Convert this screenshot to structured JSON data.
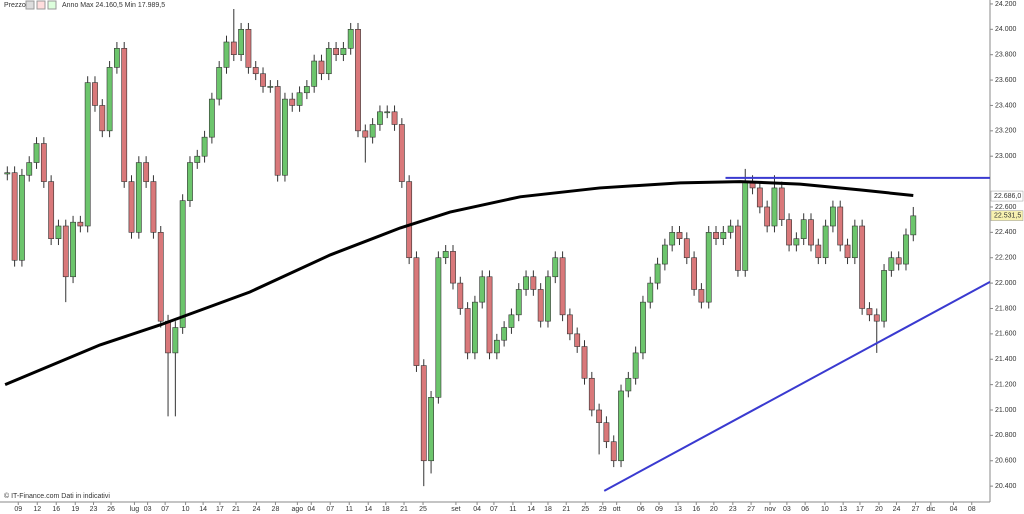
{
  "chart_data": {
    "type": "candlestick",
    "title": "Prezzo",
    "subtitle": "Anno Max 24.160,5 Min 17.989,5",
    "footer": "© IT-Finance.com Dati in indicativi",
    "up_color": "#6cc56c",
    "down_color": "#d9787a",
    "open": [
      22860,
      22870,
      22180,
      22850,
      22950,
      23100,
      22800,
      22350,
      22450,
      22050,
      22480,
      22450,
      23580,
      23400,
      23200,
      23700,
      23850,
      22800,
      22400,
      22950,
      22800,
      22400,
      21700,
      21450,
      21650,
      22650,
      22950,
      23000,
      23150,
      23450,
      23700,
      23900,
      23800,
      24000,
      23700,
      23650,
      23550,
      23550,
      22850,
      23450,
      23400,
      23500,
      23550,
      23750,
      23650,
      23850,
      23800,
      23850,
      24000,
      23200,
      23150,
      23250,
      23350,
      23350,
      23250,
      22800,
      22200,
      21350,
      20600,
      21100,
      22200,
      22250,
      22000,
      21800,
      21450,
      21850,
      22050,
      21450,
      21550,
      21650,
      21750,
      21950,
      22050,
      21950,
      21700,
      22050,
      22200,
      21750,
      21600,
      21500,
      21250,
      21000,
      20900,
      20750,
      20600,
      21150,
      21250,
      21450,
      21850,
      22000,
      22150,
      22300,
      22400,
      22350,
      22200,
      21950,
      21850,
      22400,
      22350,
      22400,
      22450,
      22100,
      22800,
      22750,
      22600,
      22450,
      22750,
      22500,
      22300,
      22350,
      22500,
      22300,
      22200,
      22450,
      22600,
      22300,
      22200,
      22450,
      21800,
      21750,
      21700,
      22100,
      22200,
      22150,
      22380
    ],
    "high": [
      22920,
      22920,
      22900,
      23000,
      23150,
      23150,
      22850,
      22500,
      22500,
      22530,
      22530,
      23630,
      23630,
      23450,
      23750,
      23900,
      23900,
      22850,
      23000,
      23000,
      22850,
      22450,
      21750,
      21700,
      22700,
      23000,
      23050,
      23200,
      23500,
      23750,
      23950,
      24160,
      24050,
      24050,
      23750,
      23700,
      23600,
      23600,
      23500,
      23500,
      23550,
      23600,
      23800,
      23800,
      23900,
      23900,
      23900,
      24050,
      24050,
      23250,
      23300,
      23400,
      23400,
      23400,
      23300,
      22850,
      22250,
      21400,
      21150,
      22250,
      22300,
      22300,
      22050,
      21850,
      21900,
      22100,
      22100,
      21600,
      21700,
      21800,
      22000,
      22100,
      22100,
      22000,
      22100,
      22250,
      22250,
      21800,
      21650,
      21550,
      21300,
      21050,
      20950,
      20800,
      21200,
      21300,
      21500,
      21900,
      22050,
      22200,
      22350,
      22450,
      22450,
      22400,
      22250,
      22000,
      22450,
      22450,
      22450,
      22500,
      22500,
      22900,
      22850,
      22800,
      22650,
      22850,
      22800,
      22550,
      22400,
      22550,
      22550,
      22350,
      22500,
      22650,
      22650,
      22350,
      22500,
      22500,
      21850,
      21800,
      22150,
      22250,
      22250,
      22430,
      22600
    ],
    "low": [
      22810,
      22130,
      22130,
      22800,
      22900,
      22750,
      22300,
      22300,
      21850,
      22000,
      22400,
      22400,
      23350,
      23150,
      23150,
      23650,
      22750,
      22350,
      22350,
      22750,
      22350,
      21650,
      20950,
      20950,
      21600,
      22600,
      22900,
      22950,
      23100,
      23400,
      23650,
      23750,
      23750,
      23650,
      23600,
      23500,
      23500,
      22800,
      22800,
      23350,
      23350,
      23450,
      23500,
      23600,
      23600,
      23750,
      23750,
      23800,
      23150,
      22950,
      23100,
      23200,
      23300,
      23200,
      22750,
      22150,
      21300,
      20400,
      20500,
      21050,
      22150,
      21950,
      21750,
      21400,
      21400,
      21800,
      21400,
      21400,
      21500,
      21600,
      21700,
      21900,
      21900,
      21650,
      21650,
      22000,
      21700,
      21550,
      21450,
      21200,
      20950,
      20650,
      20700,
      20550,
      20550,
      21100,
      21200,
      21400,
      21800,
      21950,
      22100,
      22250,
      22300,
      22150,
      21900,
      21800,
      21800,
      22300,
      22300,
      22350,
      22050,
      22050,
      22700,
      22550,
      22400,
      22400,
      22450,
      22250,
      22250,
      22300,
      22250,
      22150,
      22150,
      22400,
      22250,
      22150,
      22150,
      21750,
      21700,
      21450,
      21650,
      22050,
      22100,
      22100,
      22330
    ],
    "close": [
      22870,
      22180,
      22850,
      22950,
      23100,
      22800,
      22350,
      22450,
      22050,
      22480,
      22450,
      23580,
      23400,
      23200,
      23700,
      23850,
      22800,
      22400,
      22950,
      22800,
      22400,
      21700,
      21450,
      21650,
      22650,
      22950,
      23000,
      23150,
      23450,
      23700,
      23900,
      23800,
      24000,
      23700,
      23650,
      23550,
      23550,
      22850,
      23450,
      23400,
      23500,
      23550,
      23750,
      23650,
      23850,
      23800,
      23850,
      24000,
      23200,
      23150,
      23250,
      23350,
      23350,
      23250,
      22800,
      22200,
      21350,
      20600,
      21100,
      22200,
      22250,
      22000,
      21800,
      21450,
      21850,
      22050,
      21450,
      21550,
      21650,
      21750,
      21950,
      22050,
      21950,
      21700,
      22050,
      22200,
      21750,
      21600,
      21500,
      21250,
      21000,
      20900,
      20750,
      20600,
      21150,
      21250,
      21450,
      21850,
      22000,
      22150,
      22300,
      22400,
      22350,
      22200,
      21950,
      21850,
      22400,
      22350,
      22400,
      22450,
      22100,
      22800,
      22750,
      22600,
      22450,
      22750,
      22500,
      22300,
      22350,
      22500,
      22300,
      22200,
      22450,
      22600,
      22300,
      22200,
      22450,
      21800,
      21750,
      21700,
      22100,
      22200,
      22150,
      22380,
      22530
    ],
    "lines": [
      {
        "color": "#000000",
        "width": 3,
        "x": [
          -0.3,
          12.7,
          20.9,
          33.2,
          44.2,
          53.8,
          60.6,
          70.2,
          81.1,
          92.1,
          100.3,
          108.5,
          116.7,
          124
        ],
        "values": [
          21200,
          21513,
          21670,
          21930,
          22222,
          22435,
          22560,
          22680,
          22750,
          22790,
          22800,
          22780,
          22735,
          22690
        ]
      },
      {
        "color": "#3a3ad0",
        "width": 2,
        "x": [
          98.3,
          134.5
        ],
        "values": [
          22829,
          22829
        ]
      },
      {
        "color": "#3a3ad0",
        "width": 2,
        "x": [
          81.7,
          134.5
        ],
        "values": [
          20363,
          22010
        ]
      }
    ],
    "price_labels": [
      {
        "value": 22686,
        "label": "22.686,0",
        "color": "#ffffff"
      },
      {
        "value": 22531.5,
        "label": "22.531,5",
        "color": "#f7f1b0"
      }
    ],
    "xlim": [
      -1,
      134.5
    ],
    "ylim": [
      20275,
      24231
    ],
    "yticks": [
      {
        "value": 20400,
        "label": "20.400"
      },
      {
        "value": 20600,
        "label": "20.600"
      },
      {
        "value": 20800,
        "label": "20.800"
      },
      {
        "value": 21000,
        "label": "21.000"
      },
      {
        "value": 21200,
        "label": "21.200"
      },
      {
        "value": 21400,
        "label": "21.400"
      },
      {
        "value": 21600,
        "label": "21.600"
      },
      {
        "value": 21800,
        "label": "21.800"
      },
      {
        "value": 22000,
        "label": "22.000"
      },
      {
        "value": 22200,
        "label": "22.200"
      },
      {
        "value": 22400,
        "label": "22.400"
      },
      {
        "value": 22600,
        "label": "22.600"
      },
      {
        "value": 23000,
        "label": "23.000"
      },
      {
        "value": 23200,
        "label": "23.200"
      },
      {
        "value": 23400,
        "label": "23.400"
      },
      {
        "value": 23600,
        "label": "23.600"
      },
      {
        "value": 23800,
        "label": "23.800"
      },
      {
        "value": 24000,
        "label": "24.000"
      },
      {
        "value": 24200,
        "label": "24.200"
      }
    ],
    "xticks": [
      {
        "value": 1.5,
        "label": "09"
      },
      {
        "value": 4.1,
        "label": "12"
      },
      {
        "value": 6.7,
        "label": "16"
      },
      {
        "value": 9.3,
        "label": "19"
      },
      {
        "value": 11.8,
        "label": "23"
      },
      {
        "value": 14.2,
        "label": "26"
      },
      {
        "value": 17.4,
        "label": "lug"
      },
      {
        "value": 19.2,
        "label": "03"
      },
      {
        "value": 21.6,
        "label": "07"
      },
      {
        "value": 24.4,
        "label": "10"
      },
      {
        "value": 26.8,
        "label": "14"
      },
      {
        "value": 29.1,
        "label": "17"
      },
      {
        "value": 31.3,
        "label": "21"
      },
      {
        "value": 34.1,
        "label": "24"
      },
      {
        "value": 36.7,
        "label": "28"
      },
      {
        "value": 39.7,
        "label": "ago"
      },
      {
        "value": 41.6,
        "label": "04"
      },
      {
        "value": 44.2,
        "label": "07"
      },
      {
        "value": 46.8,
        "label": "11"
      },
      {
        "value": 49.4,
        "label": "14"
      },
      {
        "value": 51.8,
        "label": "18"
      },
      {
        "value": 54.3,
        "label": "21"
      },
      {
        "value": 56.9,
        "label": "25"
      },
      {
        "value": 61.4,
        "label": "set"
      },
      {
        "value": 64.3,
        "label": "04"
      },
      {
        "value": 66.6,
        "label": "07"
      },
      {
        "value": 69.2,
        "label": "11"
      },
      {
        "value": 71.7,
        "label": "14"
      },
      {
        "value": 74.0,
        "label": "18"
      },
      {
        "value": 76.5,
        "label": "21"
      },
      {
        "value": 79.1,
        "label": "25"
      },
      {
        "value": 81.5,
        "label": "29"
      },
      {
        "value": 83.4,
        "label": "ott"
      },
      {
        "value": 86.7,
        "label": "06"
      },
      {
        "value": 89.2,
        "label": "09"
      },
      {
        "value": 91.8,
        "label": "13"
      },
      {
        "value": 94.3,
        "label": "16"
      },
      {
        "value": 96.7,
        "label": "20"
      },
      {
        "value": 99.3,
        "label": "23"
      },
      {
        "value": 101.8,
        "label": "27"
      },
      {
        "value": 104.4,
        "label": "nov"
      },
      {
        "value": 106.7,
        "label": "03"
      },
      {
        "value": 109.2,
        "label": "06"
      },
      {
        "value": 111.9,
        "label": "10"
      },
      {
        "value": 114.4,
        "label": "13"
      },
      {
        "value": 116.7,
        "label": "17"
      },
      {
        "value": 119.3,
        "label": "20"
      },
      {
        "value": 121.7,
        "label": "24"
      },
      {
        "value": 124.3,
        "label": "27"
      },
      {
        "value": 126.4,
        "label": "dic"
      },
      {
        "value": 129.5,
        "label": "04"
      },
      {
        "value": 132.0,
        "label": "08"
      }
    ]
  }
}
